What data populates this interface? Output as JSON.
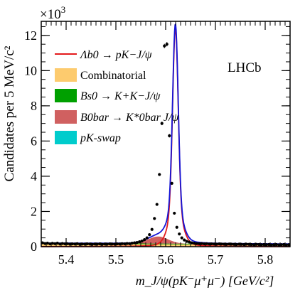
{
  "chart_data": {
    "type": "line",
    "experiment_label": "LHCb",
    "multiplier": "×10",
    "multiplier_exp": "3",
    "ylabel": "Candidates per 5 MeV/c²",
    "xlabel": "m_J/ψ(pK⁻μ⁺μ⁻) [GeV/c²]",
    "xlim": [
      5.35,
      5.85
    ],
    "ylim": [
      0,
      12.8
    ],
    "x_ticks": [
      "5.4",
      "5.5",
      "5.6",
      "5.7",
      "5.8"
    ],
    "y_ticks": [
      "0",
      "2",
      "4",
      "6",
      "8",
      "10",
      "12"
    ],
    "legend_placement": "top-left",
    "series": [
      {
        "name": "Λb0 → pK−J/ψ",
        "color": "#e31a1c",
        "kind": "line"
      },
      {
        "name": "Combinatorial",
        "color": "#fdcb6e",
        "kind": "fill"
      },
      {
        "name": "Bs0 → K+K−J/ψ",
        "color": "#00a000",
        "kind": "fill"
      },
      {
        "name": "B0bar → K*0bar J/ψ",
        "color": "#d06060",
        "kind": "fill"
      },
      {
        "name": "pK-swap",
        "color": "#00cccc",
        "kind": "fill"
      }
    ],
    "total_fit_color": "#1515d6",
    "data_points": {
      "x": [
        5.3525,
        5.3575,
        5.3625,
        5.3675,
        5.3725,
        5.3775,
        5.3825,
        5.3875,
        5.3925,
        5.3975,
        5.4025,
        5.4075,
        5.4125,
        5.4175,
        5.4225,
        5.4275,
        5.4325,
        5.4375,
        5.4425,
        5.4475,
        5.4525,
        5.4575,
        5.4625,
        5.4675,
        5.4725,
        5.4775,
        5.4825,
        5.4875,
        5.4925,
        5.4975,
        5.5025,
        5.5075,
        5.5125,
        5.5175,
        5.5225,
        5.5275,
        5.5325,
        5.5375,
        5.5425,
        5.5475,
        5.5525,
        5.5575,
        5.5625,
        5.5675,
        5.5725,
        5.5775,
        5.5825,
        5.5875,
        5.5925,
        5.5975,
        5.6025,
        5.6075,
        5.6125,
        5.6175,
        5.6225,
        5.6275,
        5.6325,
        5.6375,
        5.6425,
        5.6475,
        5.6525,
        5.6575,
        5.6625,
        5.6675,
        5.6725,
        5.6775,
        5.6825,
        5.6875,
        5.6925,
        5.6975,
        5.7025,
        5.7075,
        5.7125,
        5.7175,
        5.7225,
        5.7275,
        5.7325,
        5.7375,
        5.7425,
        5.7475,
        5.7525,
        5.7575,
        5.7625,
        5.7675,
        5.7725,
        5.7775,
        5.7825,
        5.7875,
        5.7925,
        5.7975,
        5.8025,
        5.8075,
        5.8125,
        5.8175,
        5.8225,
        5.8275,
        5.8325,
        5.8375,
        5.8425,
        5.8475
      ],
      "y": [
        0.22,
        0.18,
        0.2,
        0.16,
        0.19,
        0.17,
        0.2,
        0.15,
        0.18,
        0.16,
        0.17,
        0.14,
        0.16,
        0.15,
        0.17,
        0.13,
        0.15,
        0.14,
        0.16,
        0.15,
        0.13,
        0.15,
        0.14,
        0.16,
        0.13,
        0.15,
        0.14,
        0.16,
        0.15,
        0.14,
        0.16,
        0.15,
        0.17,
        0.16,
        0.18,
        0.17,
        0.2,
        0.22,
        0.24,
        0.28,
        0.32,
        0.4,
        0.5,
        0.68,
        0.98,
        1.6,
        2.4,
        4.1,
        7.0,
        11.4,
        11.5,
        6.3,
        3.6,
        1.9,
        1.1,
        0.72,
        0.5,
        0.38,
        0.3,
        0.26,
        0.22,
        0.2,
        0.18,
        0.17,
        0.18,
        0.16,
        0.17,
        0.15,
        0.16,
        0.15,
        0.14,
        0.16,
        0.15,
        0.14,
        0.13,
        0.15,
        0.14,
        0.13,
        0.12,
        0.14,
        0.13,
        0.12,
        0.14,
        0.13,
        0.12,
        0.11,
        0.13,
        0.12,
        0.11,
        0.12,
        0.11,
        0.12,
        0.1,
        0.11,
        0.12,
        0.1,
        0.11,
        0.12,
        0.1,
        0.11
      ]
    }
  }
}
